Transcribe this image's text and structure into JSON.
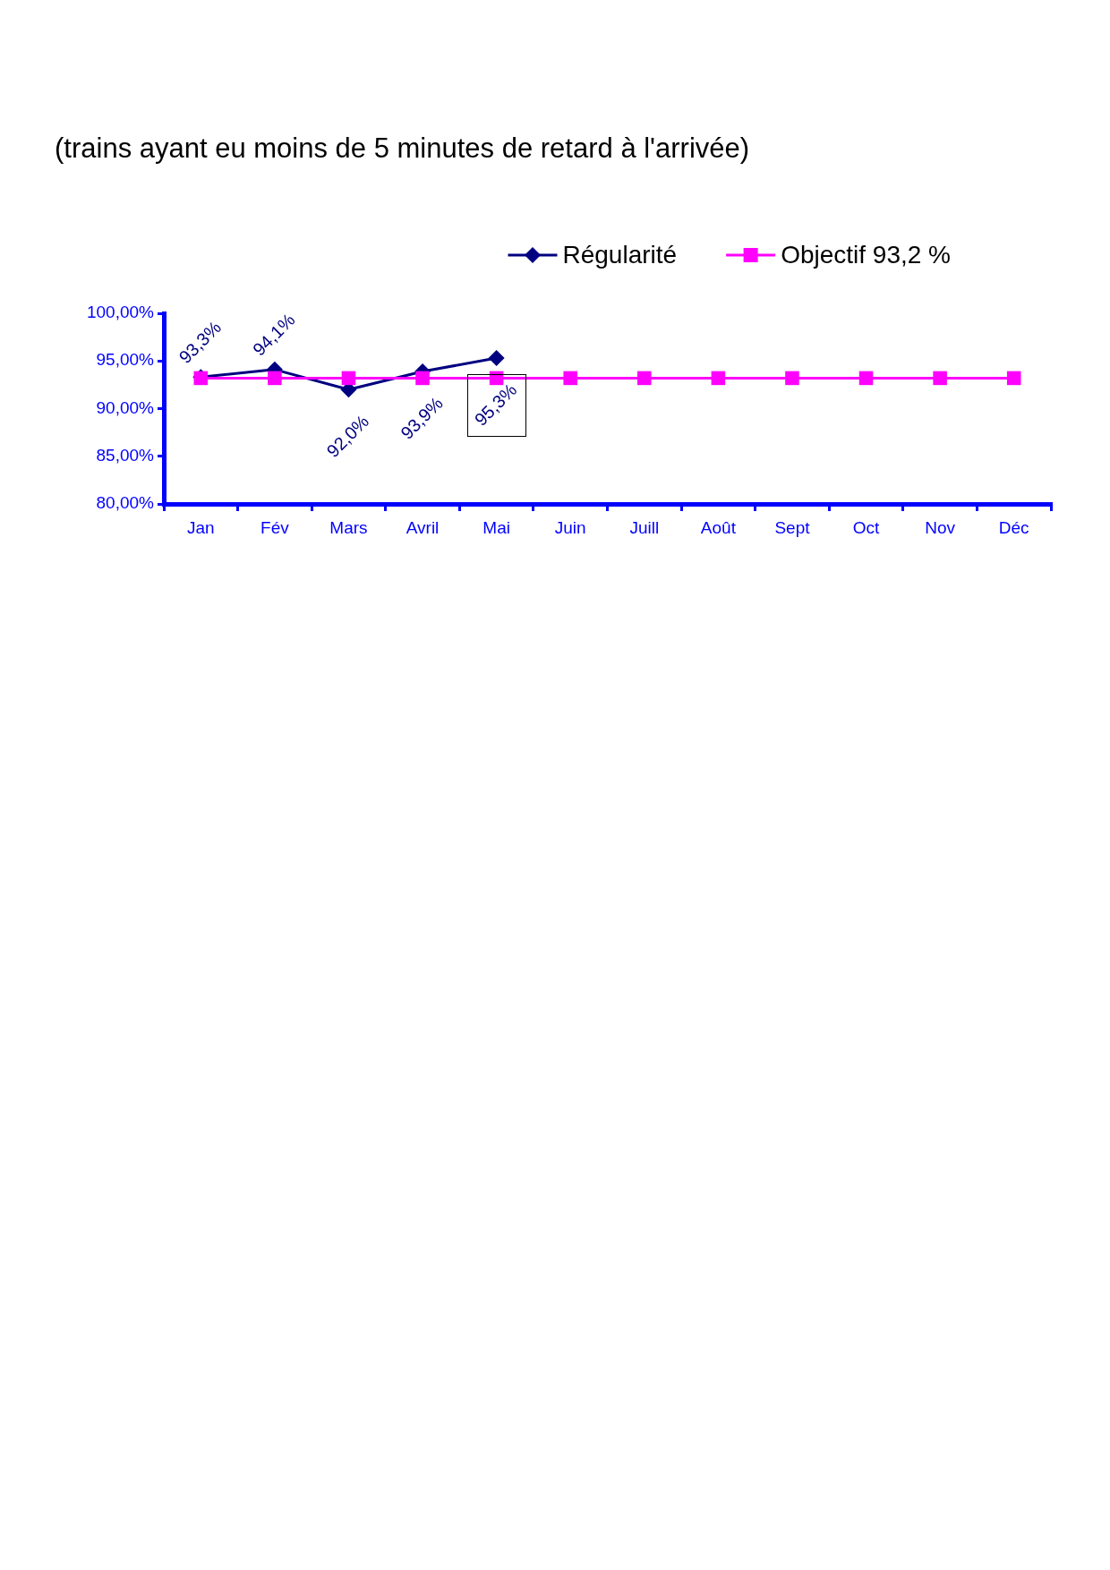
{
  "chart_data": {
    "type": "line",
    "title": "(trains ayant eu moins de 5 minutes de retard à l'arrivée)",
    "categories": [
      "Jan",
      "Fév",
      "Mars",
      "Avril",
      "Mai",
      "Juin",
      "Juill",
      "Août",
      "Sept",
      "Oct",
      "Nov",
      "Déc"
    ],
    "series": [
      {
        "name": "Régularité",
        "color": "#000080",
        "marker": "diamond",
        "values": [
          93.3,
          94.1,
          92.0,
          93.9,
          95.3,
          null,
          null,
          null,
          null,
          null,
          null,
          null
        ],
        "value_labels": [
          "93,3%",
          "94,1%",
          "92,0%",
          "93,9%",
          "95,3%",
          null,
          null,
          null,
          null,
          null,
          null,
          null
        ]
      },
      {
        "name": "Objectif 93,2 %",
        "color": "#ff00ff",
        "marker": "square",
        "values": [
          93.2,
          93.2,
          93.2,
          93.2,
          93.2,
          93.2,
          93.2,
          93.2,
          93.2,
          93.2,
          93.2,
          93.2
        ]
      }
    ],
    "ylim": [
      80,
      100
    ],
    "yticks": [
      {
        "value": 80,
        "label": "80,00%"
      },
      {
        "value": 85,
        "label": "85,00%"
      },
      {
        "value": 90,
        "label": "90,00%"
      },
      {
        "value": 95,
        "label": "95,00%"
      },
      {
        "value": 100,
        "label": "100,00%"
      }
    ],
    "grid": false,
    "legend": "top right"
  }
}
